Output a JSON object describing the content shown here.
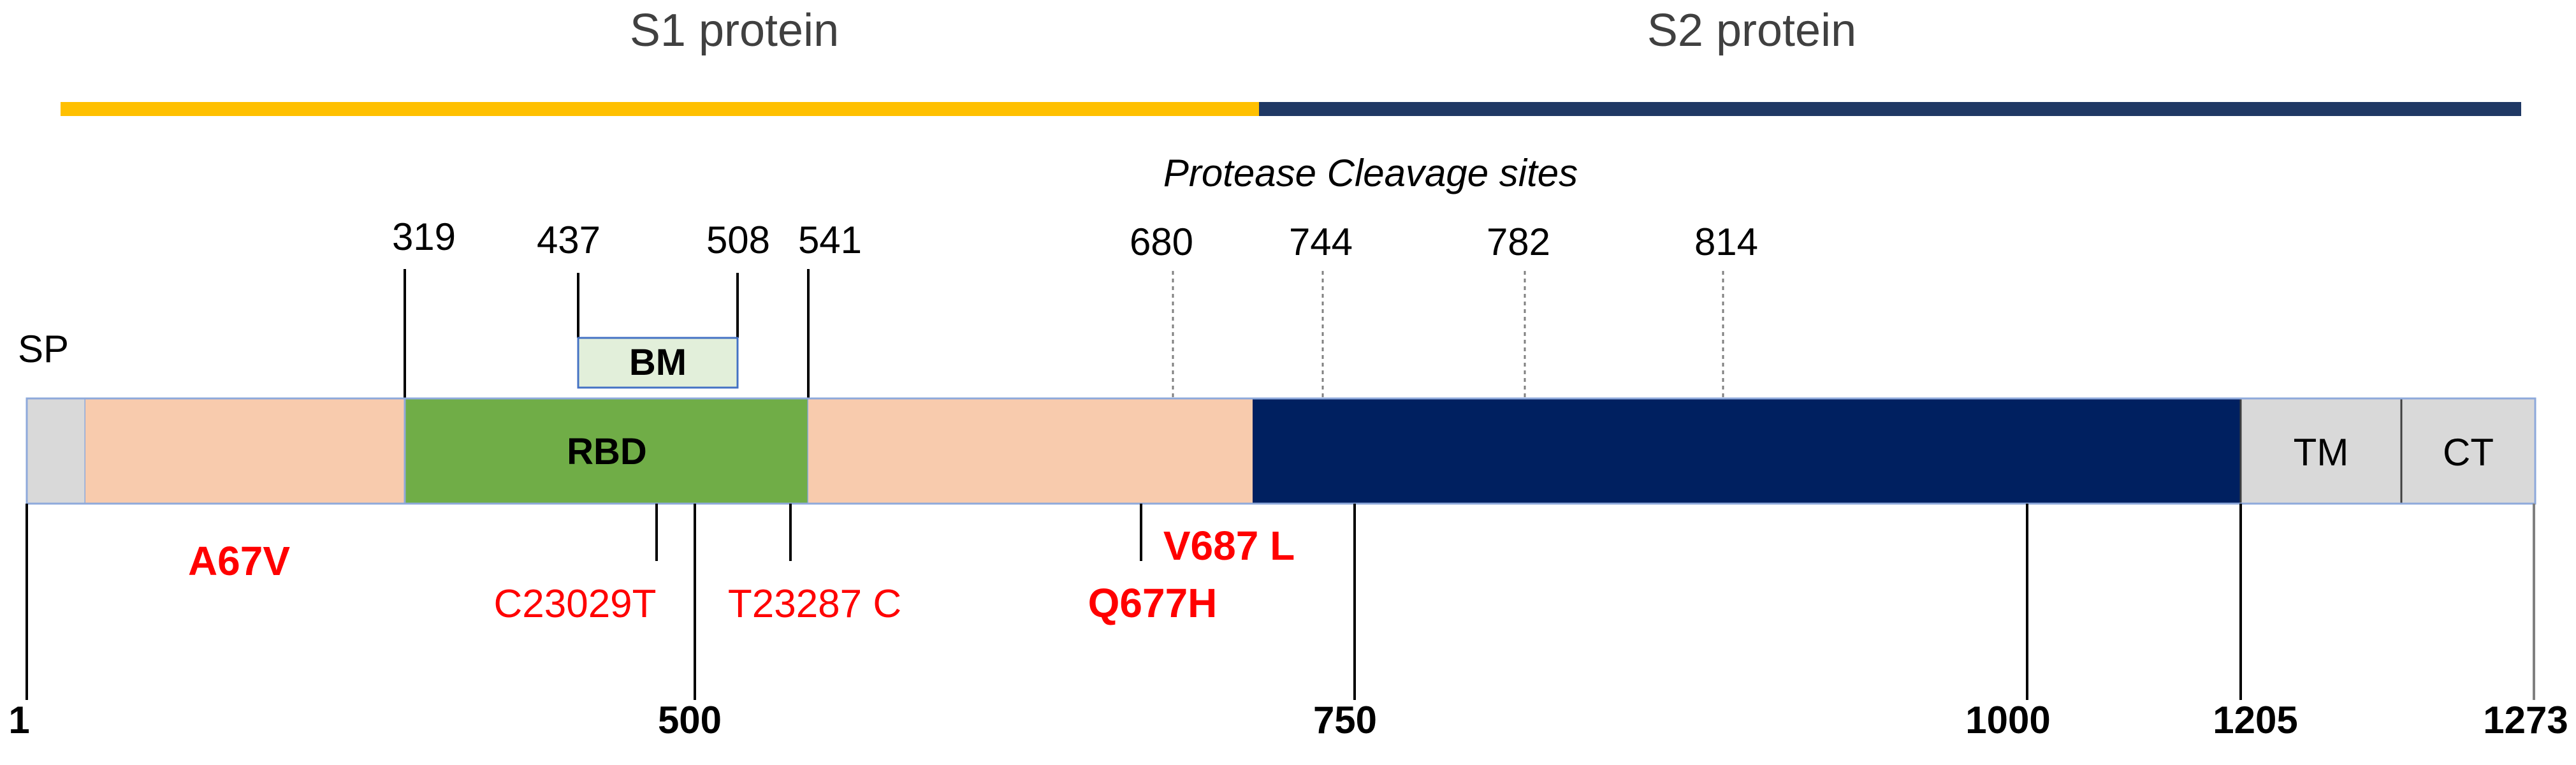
{
  "header": {
    "s1_label": "S1 protein",
    "s2_label": "S2 protein",
    "cleavage_title": "Protease Cleavage sites"
  },
  "colors": {
    "s1_bar": "#FFC000",
    "s2_bar": "#1F3864",
    "sp": "#D9D9D9",
    "s1_domain": "#F8CBAD",
    "rbd": "#70AD47",
    "bm": "#E2EFDA",
    "s2_domain": "#002060",
    "tm_ct": "#D9D9D9",
    "mutation_red": "#FF0000"
  },
  "domains": {
    "sp": "SP",
    "rbd": "RBD",
    "bm": "BM",
    "tm": "TM",
    "ct": "CT"
  },
  "top_positions": [
    "319",
    "437",
    "508",
    "541"
  ],
  "cleavage_sites": [
    "680",
    "744",
    "782",
    "814"
  ],
  "mutations": {
    "a67v": "A67V",
    "c23029t": "C23029T",
    "t23287c": "T23287 C",
    "q677h": "Q677H",
    "v687l": "V687 L"
  },
  "bottom_ticks": [
    "1",
    "500",
    "750",
    "1000",
    "1205",
    "1273"
  ]
}
